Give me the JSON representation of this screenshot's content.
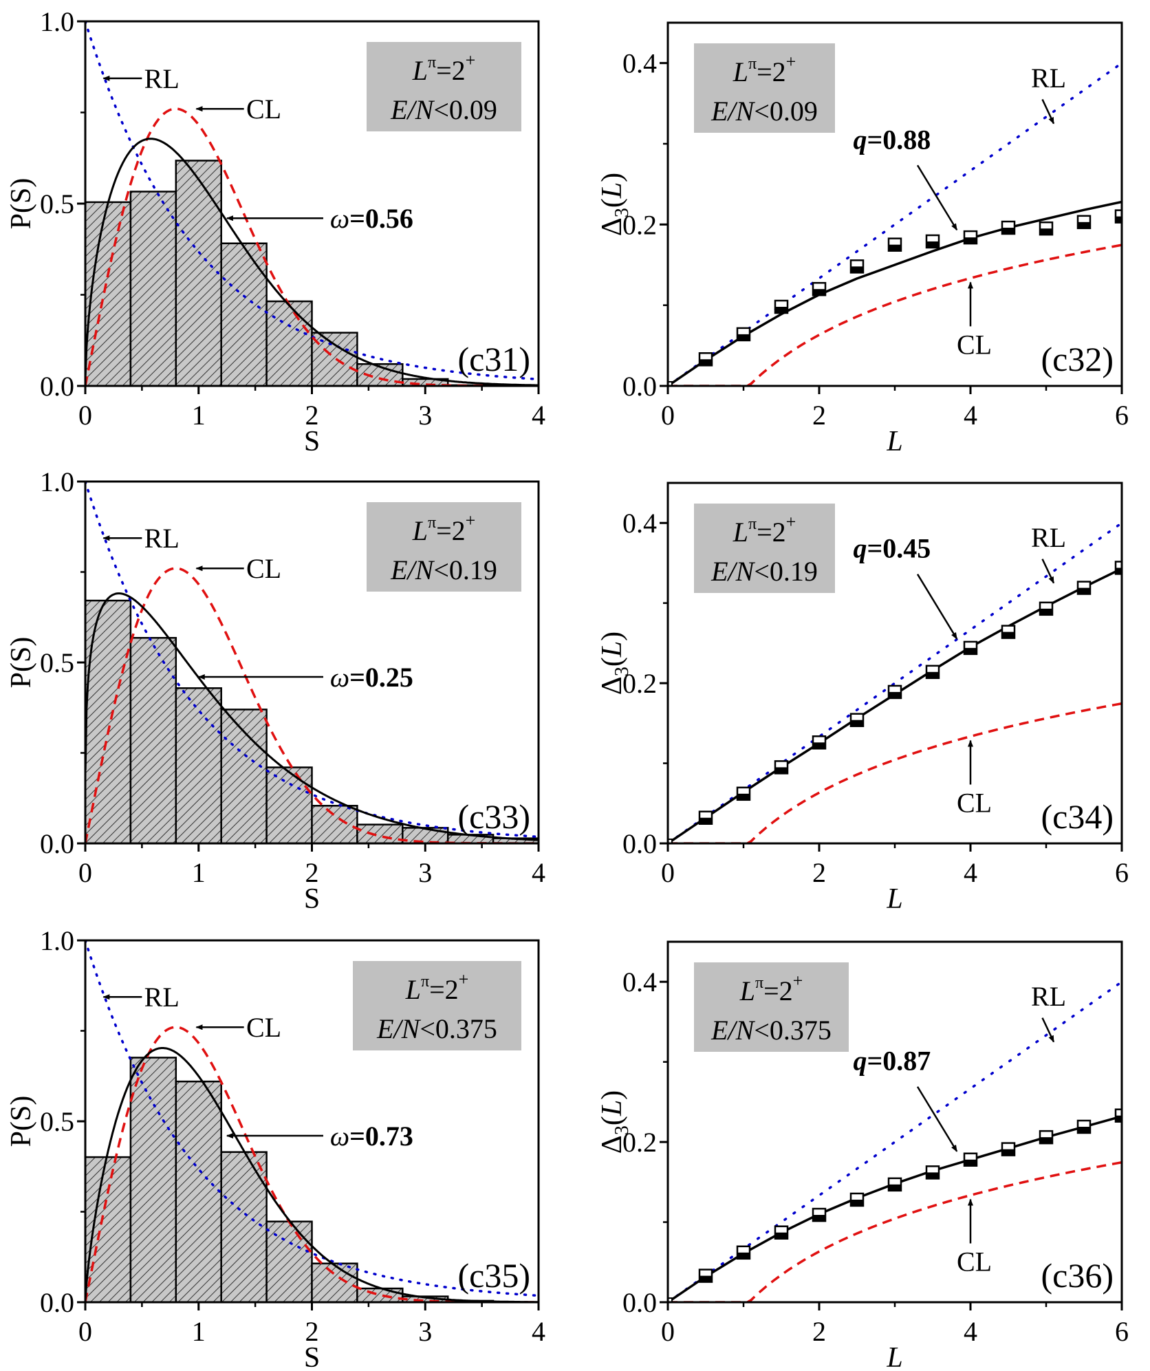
{
  "chart_data": [
    {
      "id": "c31",
      "type": "bar",
      "panel_label": "(c31)",
      "xlabel": "S",
      "ylabel": "P(S)",
      "xlim": [
        0,
        4
      ],
      "ylim": [
        0,
        1.0
      ],
      "xticks": [
        "0",
        "1",
        "2",
        "3",
        "4"
      ],
      "yticks": [
        "0.0",
        "0.5",
        "1.0"
      ],
      "bin_width": 0.4,
      "bin_edges": [
        0,
        0.4,
        0.8,
        1.2,
        1.6,
        2.0,
        2.4,
        2.8,
        3.2,
        3.6
      ],
      "values": [
        0.504,
        0.533,
        0.618,
        0.391,
        0.232,
        0.146,
        0.06,
        0.019,
        0.002
      ],
      "box": {
        "line1_main": "L",
        "line1_sup": "π",
        "line1_rest": "=2",
        "line1_sup2": "+",
        "line2_italic": "E/N",
        "line2_rest": "<0.09"
      },
      "labels": {
        "rl": "RL",
        "cl": "CL",
        "fit_symbol": "ω",
        "fit_value": "=0.56"
      },
      "omega": 0.56,
      "curves": [
        "RL: exp(-S)",
        "CL: (π/2)S·exp(-πS²/4)",
        "Brody fit ω=0.56"
      ]
    },
    {
      "id": "c32",
      "type": "scatter",
      "panel_label": "(c32)",
      "xlabel": "L",
      "ylabel": "Δ3(L)",
      "xlim": [
        0,
        6
      ],
      "ylim": [
        0,
        0.45
      ],
      "xticks": [
        "0",
        "2",
        "4",
        "6"
      ],
      "yticks": [
        "0.0",
        "0.2",
        "0.4"
      ],
      "x": [
        0.5,
        1,
        1.5,
        2,
        2.5,
        3,
        3.5,
        4,
        4.5,
        5,
        5.5,
        6
      ],
      "values": [
        0.033,
        0.064,
        0.098,
        0.12,
        0.148,
        0.175,
        0.179,
        0.184,
        0.196,
        0.195,
        0.203,
        0.21
      ],
      "fit_curve": {
        "x": [
          0,
          0.5,
          1,
          1.5,
          2,
          2.5,
          3,
          3.5,
          4,
          4.5,
          5,
          5.5,
          6
        ],
        "y": [
          0,
          0.032,
          0.062,
          0.089,
          0.113,
          0.133,
          0.15,
          0.167,
          0.183,
          0.196,
          0.207,
          0.218,
          0.228
        ]
      },
      "box": {
        "line1_main": "L",
        "line1_sup": "π",
        "line1_rest": "=2",
        "line1_sup2": "+",
        "line2_italic": "E/N",
        "line2_rest": "<0.09"
      },
      "labels": {
        "rl": "RL",
        "cl": "CL",
        "fit_symbol": "q",
        "fit_value": "=0.88"
      },
      "q": 0.88
    },
    {
      "id": "c33",
      "type": "bar",
      "panel_label": "(c33)",
      "xlabel": "S",
      "ylabel": "P(S)",
      "xlim": [
        0,
        4
      ],
      "ylim": [
        0,
        1.0
      ],
      "xticks": [
        "0",
        "1",
        "2",
        "3",
        "4"
      ],
      "yticks": [
        "0.0",
        "0.5",
        "1.0"
      ],
      "bin_width": 0.4,
      "bin_edges": [
        0,
        0.4,
        0.8,
        1.2,
        1.6,
        2.0,
        2.4,
        2.8,
        3.2,
        3.6,
        4.0
      ],
      "values": [
        0.671,
        0.568,
        0.429,
        0.37,
        0.21,
        0.104,
        0.052,
        0.043,
        0.024,
        0.014
      ],
      "box": {
        "line1_main": "L",
        "line1_sup": "π",
        "line1_rest": "=2",
        "line1_sup2": "+",
        "line2_italic": "E/N",
        "line2_rest": "<0.19"
      },
      "labels": {
        "rl": "RL",
        "cl": "CL",
        "fit_symbol": "ω",
        "fit_value": "=0.25"
      },
      "omega": 0.25
    },
    {
      "id": "c34",
      "type": "scatter",
      "panel_label": "(c34)",
      "xlabel": "L",
      "ylabel": "Δ3(L)",
      "xlim": [
        0,
        6
      ],
      "ylim": [
        0,
        0.45
      ],
      "xticks": [
        "0",
        "2",
        "4",
        "6"
      ],
      "yticks": [
        "0.0",
        "0.2",
        "0.4"
      ],
      "x": [
        0.5,
        1,
        1.5,
        2,
        2.5,
        3,
        3.5,
        4,
        4.5,
        5,
        5.5,
        6
      ],
      "values": [
        0.032,
        0.062,
        0.095,
        0.126,
        0.154,
        0.189,
        0.214,
        0.244,
        0.264,
        0.293,
        0.319,
        0.344
      ],
      "fit_curve": {
        "x": [
          0,
          0.5,
          1,
          1.5,
          2,
          2.5,
          3,
          3.5,
          4,
          4.5,
          5,
          5.5,
          6
        ],
        "y": [
          0,
          0.032,
          0.064,
          0.095,
          0.125,
          0.156,
          0.186,
          0.216,
          0.245,
          0.271,
          0.296,
          0.32,
          0.343
        ]
      },
      "box": {
        "line1_main": "L",
        "line1_sup": "π",
        "line1_rest": "=2",
        "line1_sup2": "+",
        "line2_italic": "E/N",
        "line2_rest": "<0.19"
      },
      "labels": {
        "rl": "RL",
        "cl": "CL",
        "fit_symbol": "q",
        "fit_value": "=0.45"
      },
      "q": 0.45
    },
    {
      "id": "c35",
      "type": "bar",
      "panel_label": "(c35)",
      "xlabel": "S",
      "ylabel": "P(S)",
      "xlim": [
        0,
        4
      ],
      "ylim": [
        0,
        1.0
      ],
      "xticks": [
        "0",
        "1",
        "2",
        "3",
        "4"
      ],
      "yticks": [
        "0.0",
        "0.5",
        "1.0"
      ],
      "bin_width": 0.4,
      "bin_edges": [
        0,
        0.4,
        0.8,
        1.2,
        1.6,
        2.0,
        2.4,
        2.8,
        3.2,
        3.6
      ],
      "values": [
        0.401,
        0.676,
        0.61,
        0.415,
        0.223,
        0.107,
        0.038,
        0.016,
        0.004
      ],
      "box": {
        "line1_main": "L",
        "line1_sup": "π",
        "line1_rest": "=2",
        "line1_sup2": "+",
        "line2_italic": "E/N",
        "line2_rest": "<0.375"
      },
      "labels": {
        "rl": "RL",
        "cl": "CL",
        "fit_symbol": "ω",
        "fit_value": "=0.73"
      },
      "omega": 0.73
    },
    {
      "id": "c36",
      "type": "scatter",
      "panel_label": "(c36)",
      "xlabel": "L",
      "ylabel": "Δ3(L)",
      "xlim": [
        0,
        6
      ],
      "ylim": [
        0,
        0.45
      ],
      "xticks": [
        "0",
        "2",
        "4",
        "6"
      ],
      "yticks": [
        "0.0",
        "0.2",
        "0.4"
      ],
      "x": [
        0.5,
        1,
        1.5,
        2,
        2.5,
        3,
        3.5,
        4,
        4.5,
        5,
        5.5,
        6
      ],
      "values": [
        0.033,
        0.062,
        0.087,
        0.109,
        0.128,
        0.147,
        0.162,
        0.178,
        0.191,
        0.206,
        0.219,
        0.233
      ],
      "fit_curve": {
        "x": [
          0,
          0.5,
          1,
          1.5,
          2,
          2.5,
          3,
          3.5,
          4,
          4.5,
          5,
          5.5,
          6
        ],
        "y": [
          0,
          0.032,
          0.061,
          0.087,
          0.11,
          0.13,
          0.148,
          0.164,
          0.178,
          0.192,
          0.206,
          0.219,
          0.232
        ]
      },
      "box": {
        "line1_main": "L",
        "line1_sup": "π",
        "line1_rest": "=2",
        "line1_sup2": "+",
        "line2_italic": "E/N",
        "line2_rest": "<0.375"
      },
      "labels": {
        "rl": "RL",
        "cl": "CL",
        "fit_symbol": "q",
        "fit_value": "=0.87"
      },
      "q": 0.87
    }
  ],
  "colors": {
    "rl": "#0000cc",
    "cl": "#e01010",
    "fit": "#000000",
    "bar_fill": "#c8c8c8",
    "box_fill": "#c0c0c0"
  }
}
